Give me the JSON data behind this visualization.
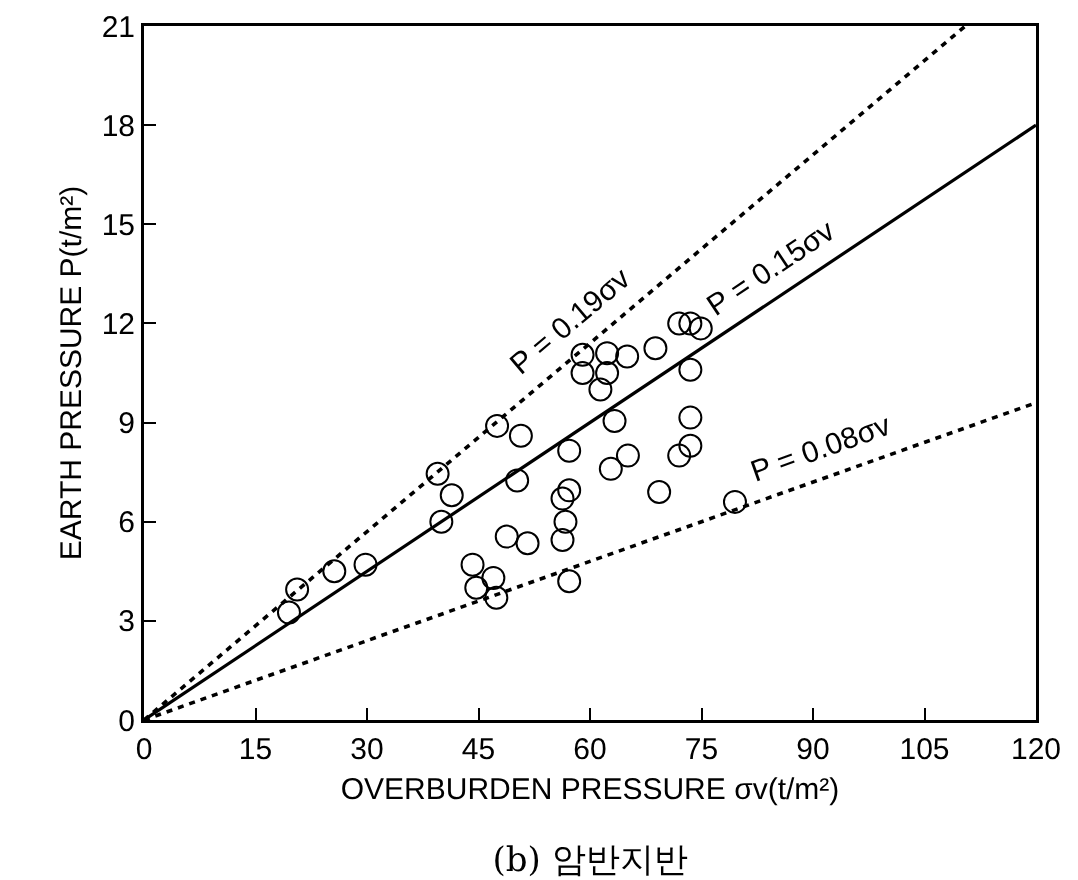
{
  "chart_data": {
    "type": "scatter",
    "title": "(b) 암반지반",
    "xlabel": "OVERBURDEN PRESSURE σv(t/m²)",
    "ylabel": "EARTH PRESSURE P(t/m²)",
    "xlim": [
      0,
      120
    ],
    "ylim": [
      0,
      21
    ],
    "xticks": [
      0,
      15,
      30,
      45,
      60,
      75,
      90,
      105,
      120
    ],
    "yticks": [
      0,
      3,
      6,
      9,
      12,
      15,
      18,
      21
    ],
    "grid": false,
    "series": [
      {
        "color": "#000000",
        "marker": "circle",
        "x": [
          19.5,
          20.6,
          25.6,
          29.8,
          39.5,
          41.4,
          40,
          47.5,
          50.7,
          50.2,
          48.8,
          51.6,
          44.2,
          44.7,
          47,
          47.4,
          57.2,
          57.2,
          56.3,
          56.3,
          56.7,
          57.2,
          59,
          59,
          61.4,
          62.3,
          62.3,
          65,
          63.3,
          62.8,
          65.1,
          68.8,
          72,
          73.5,
          74.9,
          73.5,
          73.5,
          73.5,
          72,
          69.3,
          79.5
        ],
        "values": [
          3.25,
          3.95,
          4.5,
          4.7,
          7.45,
          6.8,
          6,
          8.9,
          8.6,
          7.25,
          5.55,
          5.35,
          4.7,
          4,
          4.3,
          3.7,
          8.15,
          6.95,
          6.7,
          5.45,
          6,
          4.2,
          11.05,
          10.5,
          10,
          11.1,
          10.5,
          11,
          9.05,
          7.6,
          8,
          11.25,
          12,
          12,
          11.85,
          10.6,
          9.15,
          8.3,
          8,
          6.9,
          6.6
        ]
      },
      {
        "type": "line",
        "color": "#000000",
        "marker": "none",
        "line_style": "dotted",
        "x": [
          0,
          110.5
        ],
        "values": [
          0,
          21
        ]
      },
      {
        "type": "line",
        "color": "#000000",
        "marker": "none",
        "line_style": "solid",
        "x": [
          0,
          120
        ],
        "values": [
          0,
          18
        ]
      },
      {
        "type": "line",
        "color": "#000000",
        "marker": "none",
        "line_style": "dotted",
        "x": [
          0,
          120
        ],
        "values": [
          0,
          9.6
        ]
      }
    ],
    "annotations": [
      "P = 0.19σv",
      "P = 0.15σv",
      "P = 0.08σv"
    ]
  }
}
